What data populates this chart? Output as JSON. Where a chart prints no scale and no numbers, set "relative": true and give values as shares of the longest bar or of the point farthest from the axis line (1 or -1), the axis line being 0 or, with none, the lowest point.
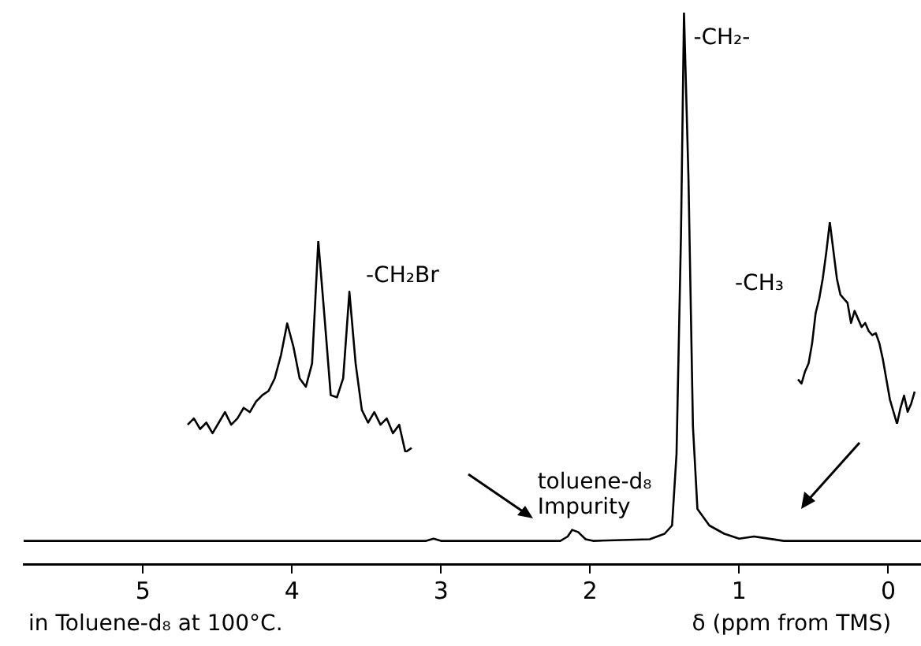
{
  "chart_data": [
    {
      "type": "line",
      "relative": true,
      "xlabel": "δ (ppm from TMS)",
      "xlim": [
        5.8,
        -0.22
      ],
      "xticks": [
        5,
        4,
        3,
        2,
        1,
        0
      ],
      "grid": false,
      "legend": false,
      "marker": "none",
      "line_style": "solid",
      "tick_labels": "x",
      "x": [
        5.8,
        3.1,
        3.05,
        3.0,
        2.2,
        2.15,
        2.12,
        2.08,
        2.03,
        1.98,
        1.6,
        1.5,
        1.45,
        1.42,
        1.39,
        1.37,
        1.34,
        1.31,
        1.28,
        1.2,
        1.1,
        1.0,
        0.9,
        0.85,
        0.7,
        -0.22
      ],
      "series": [
        {
          "color": "#000000",
          "values": [
            0.042,
            0.042,
            0.046,
            0.042,
            0.042,
            0.05,
            0.062,
            0.058,
            0.045,
            0.042,
            0.045,
            0.055,
            0.07,
            0.2,
            0.6,
            1.0,
            0.7,
            0.25,
            0.1,
            0.07,
            0.055,
            0.046,
            0.05,
            0.048,
            0.042,
            0.042
          ]
        }
      ],
      "annotations": [
        {
          "text": "-CH₂-",
          "x": 1.37,
          "y": 1.0
        },
        {
          "text": "toluene-d₈ Impurity",
          "x": 2.12,
          "y": 0.062
        },
        "-CH₂Br",
        "-CH₃",
        "in Toluene-d₈ at 100°C."
      ]
    },
    {
      "type": "line",
      "relative": true,
      "tick_labels": false,
      "grid": false,
      "legend": false,
      "marker": "none",
      "categories": [
        null,
        null,
        null,
        null,
        null,
        null,
        null,
        null,
        null,
        null,
        null,
        null,
        null,
        null,
        null,
        null,
        null,
        null,
        null,
        null,
        null,
        null,
        null,
        null,
        null,
        null,
        null,
        null,
        null,
        null,
        null,
        null,
        null,
        null,
        null,
        null,
        null
      ],
      "series": [
        {
          "color": "#000000",
          "values": [
            0.13,
            0.16,
            0.11,
            0.14,
            0.09,
            0.14,
            0.19,
            0.13,
            0.16,
            0.21,
            0.19,
            0.24,
            0.27,
            0.29,
            0.35,
            0.46,
            0.61,
            0.5,
            0.35,
            0.31,
            0.42,
            1.0,
            0.64,
            0.27,
            0.26,
            0.35,
            0.76,
            0.42,
            0.2,
            0.14,
            0.19,
            0.13,
            0.16,
            0.09,
            0.13,
            0.0,
            0.02
          ]
        }
      ]
    },
    {
      "type": "line",
      "relative": true,
      "tick_labels": false,
      "grid": false,
      "legend": false,
      "marker": "none",
      "categories": [
        null,
        null,
        null,
        null,
        null,
        null,
        null,
        null,
        null,
        null,
        null,
        null,
        null,
        null,
        null,
        null,
        null,
        null,
        null,
        null,
        null,
        null,
        null,
        null,
        null,
        null,
        null,
        null,
        null,
        null,
        null,
        null,
        null,
        null
      ],
      "series": [
        {
          "color": "#000000",
          "values": [
            0.22,
            0.2,
            0.26,
            0.3,
            0.4,
            0.55,
            0.62,
            0.72,
            0.85,
            1.0,
            0.86,
            0.72,
            0.64,
            0.62,
            0.6,
            0.5,
            0.56,
            0.52,
            0.48,
            0.5,
            0.46,
            0.44,
            0.45,
            0.4,
            0.32,
            0.22,
            0.12,
            0.06,
            0.0,
            0.08,
            0.14,
            0.06,
            0.1,
            0.16
          ]
        }
      ]
    }
  ]
}
